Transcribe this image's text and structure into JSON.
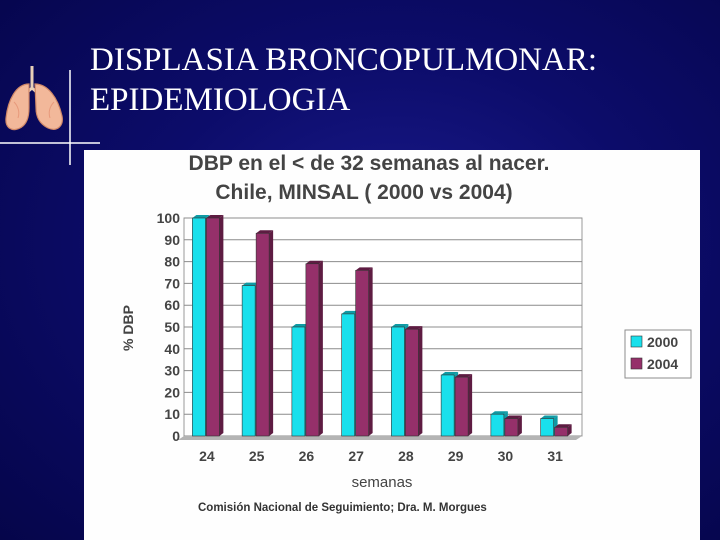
{
  "slide": {
    "title_line1": "DISPLASIA BRONCOPULMONAR:",
    "title_line2": "EPIDEMIOLOGIA"
  },
  "icons": {
    "decoration": "lungs-icon"
  },
  "colors": {
    "background": "#0c0c6a",
    "series_2000": "#19e0ec",
    "series_2004": "#95306a"
  },
  "chart_data": {
    "type": "bar",
    "title_line1": "DBP en el < de 32 semanas al nacer.",
    "title_line2": "Chile, MINSAL ( 2000 vs 2004)",
    "xlabel": "semanas",
    "ylabel": "% DBP",
    "categories": [
      "24",
      "25",
      "26",
      "27",
      "28",
      "29",
      "30",
      "31"
    ],
    "yticks": [
      "0",
      "10",
      "20",
      "30",
      "40",
      "50",
      "60",
      "70",
      "80",
      "90",
      "100"
    ],
    "ylim": [
      0,
      100
    ],
    "grid": true,
    "legend_position": "right",
    "series": [
      {
        "name": "2000",
        "values": [
          100,
          69,
          50,
          56,
          50,
          28,
          10,
          8
        ]
      },
      {
        "name": "2004",
        "values": [
          100,
          93,
          79,
          76,
          49,
          27,
          8,
          4
        ]
      }
    ],
    "source": "Comisión Nacional de Seguimiento; Dra. M. Morgues"
  }
}
